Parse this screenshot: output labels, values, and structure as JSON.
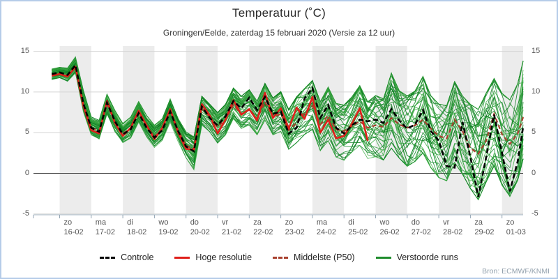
{
  "page": {
    "title": "Temperatuur (˚C)",
    "subtitle": "Groningen/Eelde, zaterdag 15 februari 2020 (Versie za 12 uur)",
    "source": "Bron: ECMWF/KNMI"
  },
  "colors": {
    "frame_border": "#b5cce8",
    "band_shade": "#ececec",
    "gridline": "#d4d4d4",
    "zero_line": "#444444",
    "axis_line": "#a9bac7",
    "tick": "#93a5b4",
    "controle": "#000000",
    "hoge_resolutie": "#df1f1a",
    "middelste_p50": "#a8402e",
    "verstoorde_runs": "#1f8c2c",
    "member_palette": [
      "#128a28",
      "#2f9e38",
      "#0c7d1f",
      "#3fae46"
    ]
  },
  "legend": {
    "items": [
      {
        "label": "Controle",
        "slug": "controle",
        "color": "#000000",
        "dash": true
      },
      {
        "label": "Hoge resolutie",
        "slug": "hoge-resolutie",
        "color": "#df1f1a",
        "dash": false
      },
      {
        "label": "Middelste (P50)",
        "slug": "middelste-p50",
        "color": "#a8402e",
        "dash": true
      },
      {
        "label": "Verstoorde runs",
        "slug": "verstoorde-runs",
        "color": "#1f8c2c",
        "dash": false
      }
    ]
  },
  "chart_data": {
    "type": "line",
    "title": "Temperatuur (˚C)",
    "subtitle": "Groningen/Eelde, zaterdag 15 februari 2020 (Versie za 12 uur)",
    "ylabel": "",
    "xlabel": "",
    "y_axis": {
      "ticks": [
        15,
        10,
        5,
        0,
        -5
      ],
      "range": [
        -5.1,
        15.6
      ],
      "zero_line_dark": true
    },
    "x_axis": {
      "note": "time axis, one tick per midnight; shaded = gray day band",
      "days": [
        {
          "weekday": "zo",
          "date": "16-02",
          "shaded": true
        },
        {
          "weekday": "ma",
          "date": "17-02",
          "shaded": false
        },
        {
          "weekday": "di",
          "date": "18-02",
          "shaded": true
        },
        {
          "weekday": "wo",
          "date": "19-02",
          "shaded": false
        },
        {
          "weekday": "do",
          "date": "20-02",
          "shaded": true
        },
        {
          "weekday": "vr",
          "date": "21-02",
          "shaded": false
        },
        {
          "weekday": "za",
          "date": "22-02",
          "shaded": true
        },
        {
          "weekday": "zo",
          "date": "23-02",
          "shaded": false
        },
        {
          "weekday": "ma",
          "date": "24-02",
          "shaded": true
        },
        {
          "weekday": "di",
          "date": "25-02",
          "shaded": false
        },
        {
          "weekday": "wo",
          "date": "26-02",
          "shaded": true
        },
        {
          "weekday": "do",
          "date": "27-02",
          "shaded": false
        },
        {
          "weekday": "vr",
          "date": "28-02",
          "shaded": true
        },
        {
          "weekday": "za",
          "date": "29-02",
          "shaded": false
        },
        {
          "weekday": "zo",
          "date": "01-03",
          "shaded": true
        }
      ]
    },
    "sampling": {
      "d_start": -0.25,
      "d_step": 0.25,
      "n_points": 61,
      "note": "d = days since 2020-02-16 00:00, 6-hourly values in °C"
    },
    "series": [
      {
        "name": "Controle",
        "style": "dashed",
        "color": "#000000",
        "values": [
          12.2,
          12.4,
          12.1,
          13.3,
          8.6,
          5.6,
          5.1,
          8.7,
          6.4,
          4.8,
          5.4,
          7.4,
          5.6,
          4.4,
          5.3,
          7.6,
          5.2,
          3.3,
          2.7,
          8.2,
          6.8,
          5.9,
          7.0,
          8.9,
          8.0,
          9.3,
          7.8,
          9.4,
          7.3,
          7.6,
          4.9,
          5.6,
          9.2,
          10.5,
          6.8,
          8.4,
          5.6,
          4.9,
          5.9,
          6.6,
          6.4,
          6.6,
          6.2,
          7.9,
          6.5,
          5.5,
          6.0,
          7.8,
          5.2,
          4.0,
          0.9,
          0.7,
          6.3,
          2.0,
          -2.9,
          2.0,
          7.2,
          2.5,
          -2.2,
          1.5,
          5.7
        ]
      },
      {
        "name": "Hoge resolutie",
        "style": "solid",
        "color": "#df1f1a",
        "values": [
          12.0,
          12.2,
          11.9,
          13.1,
          8.3,
          5.3,
          4.9,
          8.9,
          6.2,
          4.6,
          5.6,
          7.7,
          5.9,
          4.2,
          5.6,
          7.9,
          5.0,
          3.0,
          2.9,
          8.5,
          7.1,
          4.9,
          6.6,
          9.0,
          7.2,
          7.9,
          6.5,
          9.9,
          6.8,
          8.0,
          5.5,
          8.1,
          6.7,
          9.4,
          5.0,
          6.6,
          4.3,
          4.6,
          6.1,
          8.0,
          4.0
        ]
      },
      {
        "name": "Middelste (P50)",
        "style": "dashed",
        "color": "#a8402e",
        "values": [
          12.1,
          12.3,
          12.0,
          13.0,
          8.5,
          5.6,
          5.2,
          8.5,
          6.3,
          4.9,
          5.5,
          7.5,
          5.8,
          4.5,
          5.4,
          7.7,
          5.3,
          3.4,
          3.0,
          8.0,
          6.9,
          5.7,
          6.6,
          8.4,
          7.3,
          7.8,
          6.7,
          8.8,
          6.9,
          7.3,
          5.3,
          6.2,
          7.4,
          8.3,
          6.0,
          7.1,
          5.4,
          5.2,
          5.8,
          6.4,
          5.6,
          5.9,
          5.7,
          6.8,
          6.0,
          5.6,
          5.9,
          6.6,
          5.5,
          4.6,
          4.3,
          6.6,
          5.2,
          3.1,
          2.4,
          4.0,
          7.3,
          4.8,
          3.6,
          4.9,
          6.9
        ]
      }
    ],
    "ensemble": {
      "name": "Verstoorde runs",
      "n_members": 50,
      "color": "#1f8c2c",
      "envelope_min": [
        11.4,
        11.6,
        11.2,
        12.2,
        7.4,
        4.6,
        4.0,
        7.2,
        5.0,
        3.6,
        4.2,
        6.2,
        4.4,
        3.0,
        3.8,
        6.2,
        3.8,
        1.8,
        0.3,
        5.8,
        5.0,
        3.6,
        4.6,
        6.6,
        5.4,
        5.8,
        4.6,
        6.4,
        4.6,
        5.0,
        2.8,
        3.6,
        4.6,
        5.2,
        2.6,
        3.8,
        1.8,
        1.4,
        2.4,
        3.2,
        1.6,
        1.8,
        1.4,
        2.8,
        1.6,
        0.6,
        1.2,
        2.2,
        0.4,
        -0.8,
        -1.2,
        1.0,
        -0.4,
        -2.2,
        -3.6,
        -1.4,
        0.6,
        -1.8,
        -3.2,
        -1.2,
        1.4
      ],
      "envelope_max": [
        12.9,
        13.1,
        13.0,
        14.4,
        10.3,
        7.0,
        6.6,
        9.8,
        7.8,
        6.2,
        7.0,
        8.9,
        7.2,
        6.0,
        6.8,
        9.2,
        6.8,
        5.2,
        4.6,
        9.6,
        8.6,
        7.6,
        8.6,
        10.6,
        9.6,
        10.4,
        9.0,
        11.2,
        9.4,
        10.2,
        8.0,
        9.6,
        10.6,
        11.6,
        9.0,
        10.8,
        8.8,
        8.6,
        9.6,
        11.0,
        9.0,
        9.8,
        9.4,
        12.6,
        10.4,
        9.8,
        10.4,
        12.2,
        9.8,
        8.8,
        8.6,
        11.6,
        9.8,
        8.8,
        8.2,
        10.2,
        12.0,
        10.2,
        9.4,
        11.4,
        14.2
      ]
    },
    "legend_position": "bottom"
  }
}
